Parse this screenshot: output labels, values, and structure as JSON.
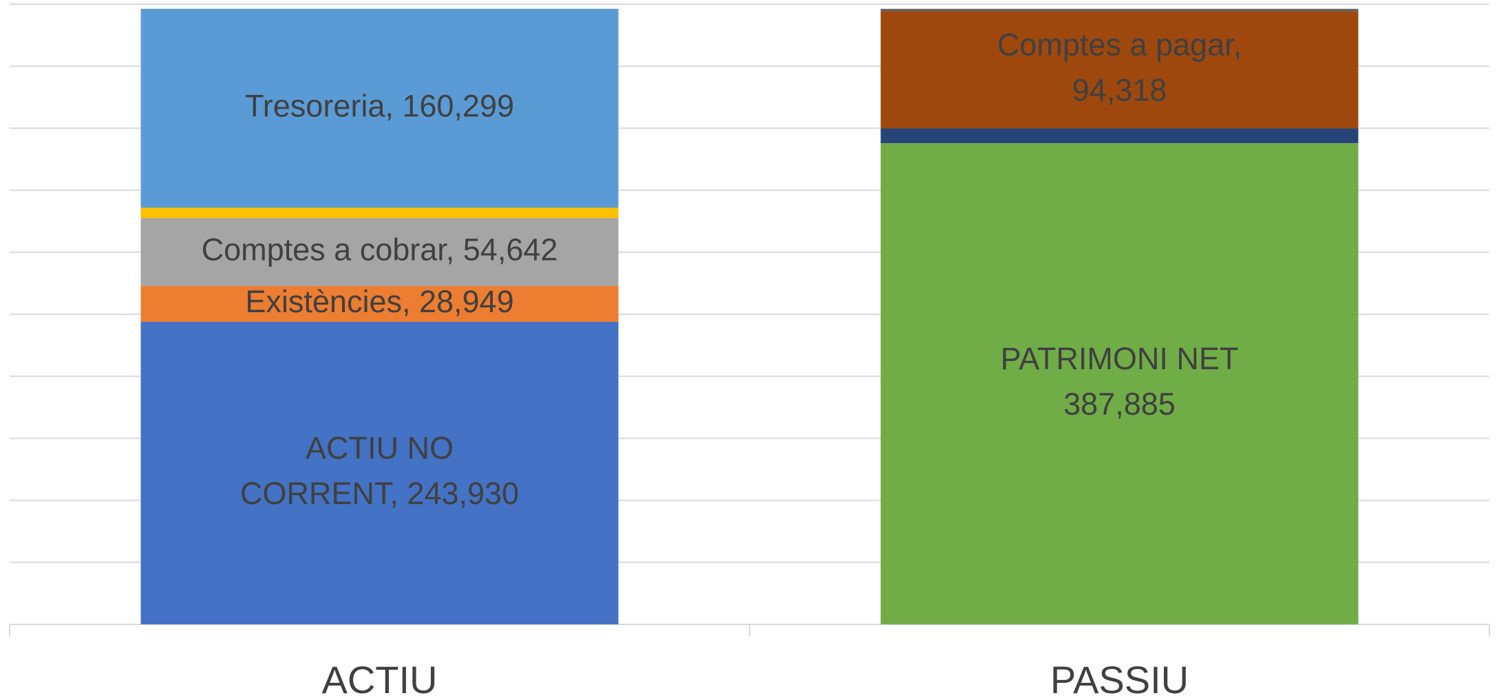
{
  "chart_data": {
    "type": "stacked_bar",
    "categories": [
      "ACTIU",
      "PASSIU"
    ],
    "series": [
      {
        "color": "#4472c4",
        "values": [
          243930,
          null
        ],
        "value_labels": [
          "ACTIU NO\nCORRENT, 243,930",
          null
        ]
      },
      {
        "color": "#ed7d31",
        "values": [
          28949,
          null
        ],
        "value_labels": [
          "Existències, 28,949",
          null
        ]
      },
      {
        "color": "#a5a5a5",
        "values": [
          54642,
          null
        ],
        "value_labels": [
          "Comptes a cobrar, 54,642",
          null
        ]
      },
      {
        "color": "#ffc000",
        "values": [
          8400,
          null
        ]
      },
      {
        "color": "#5b9bd5",
        "values": [
          160299,
          null
        ],
        "value_labels": [
          "Tresoreria, 160,299",
          null
        ]
      },
      {
        "color": "#70ad47",
        "values": [
          null,
          387885
        ],
        "value_labels": [
          null,
          "PATRIMONI NET\n387,885"
        ]
      },
      {
        "color": "#264478",
        "values": [
          null,
          12000
        ]
      },
      {
        "color": "#9e480e",
        "values": [
          null,
          94318
        ],
        "value_labels": [
          null,
          "Comptes a pagar,\n94,318"
        ]
      },
      {
        "color": "#636363",
        "values": [
          null,
          2000
        ]
      }
    ],
    "ylim": [
      0,
      500000
    ],
    "yticks": [
      0,
      50000,
      100000,
      150000,
      200000,
      250000,
      300000,
      350000,
      400000,
      450000,
      500000
    ],
    "grid": true
  }
}
